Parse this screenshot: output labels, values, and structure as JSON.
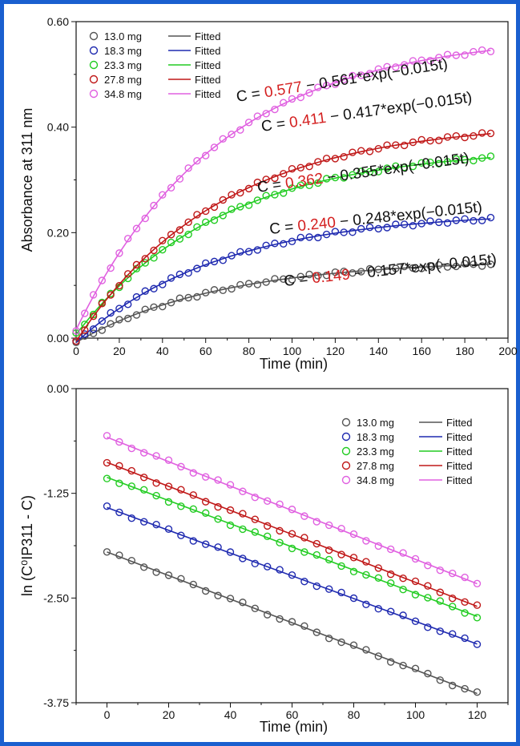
{
  "chart_data": [
    {
      "type": "scatter",
      "xlabel": "Time (min)",
      "ylabel": "Absorbance at 311 nm",
      "xlim": [
        0,
        200
      ],
      "ylim": [
        0,
        0.6
      ],
      "xticks": [
        "0",
        "20",
        "40",
        "60",
        "80",
        "100",
        "120",
        "140",
        "160",
        "180",
        "200"
      ],
      "yticks": [
        "0.00",
        "0.20",
        "0.40",
        "0.60"
      ],
      "legend_position": "top-left",
      "fit_label": "Fitted",
      "series": [
        {
          "name": "13.0 mg",
          "color": "#555555",
          "equation": {
            "prefix": "C = ",
            "a": "0.149",
            "suffix": " − 0.157*exp(−0.015t)"
          },
          "A": 0.149,
          "B": 0.157,
          "k": 0.015
        },
        {
          "name": "18.3 mg",
          "color": "#1f2ab0",
          "equation": {
            "prefix": "C = ",
            "a": "0.240",
            "suffix": " − 0.248*exp(−0.015t)"
          },
          "A": 0.24,
          "B": 0.248,
          "k": 0.015
        },
        {
          "name": "23.3 mg",
          "color": "#22cc22",
          "equation": {
            "prefix": "C = ",
            "a": "0.362",
            "suffix": " − 0.355*exp(−0.015t)"
          },
          "A": 0.362,
          "B": 0.355,
          "k": 0.015
        },
        {
          "name": "27.8 mg",
          "color": "#c01818",
          "equation": {
            "prefix": "C = ",
            "a": "0.411",
            "suffix": " − 0.417*exp(−0.015t)"
          },
          "A": 0.411,
          "B": 0.417,
          "k": 0.015
        },
        {
          "name": "34.8 mg",
          "color": "#e060e0",
          "equation": {
            "prefix": "C = ",
            "a": "0.577",
            "suffix": " − 0.561*exp(−0.015t)"
          },
          "A": 0.577,
          "B": 0.561,
          "k": 0.015
        }
      ],
      "x_points": [
        0,
        4,
        8,
        12,
        16,
        20,
        24,
        28,
        32,
        36,
        40,
        44,
        48,
        52,
        56,
        60,
        64,
        68,
        72,
        76,
        80,
        84,
        88,
        92,
        96,
        100,
        104,
        108,
        112,
        116,
        120,
        124,
        128,
        132,
        136,
        140,
        144,
        148,
        152,
        156,
        160,
        164,
        168,
        172,
        176,
        180,
        184,
        188,
        192
      ]
    },
    {
      "type": "scatter",
      "xlabel": "Time (min)",
      "ylabel": "ln (C⁰IP311 - C)",
      "xlim": [
        -10,
        130
      ],
      "ylim": [
        -3.75,
        0
      ],
      "xticks": [
        "0",
        "20",
        "40",
        "60",
        "80",
        "100",
        "120"
      ],
      "yticks": [
        "0.00",
        "-1.25",
        "-2.50",
        "-3.75"
      ],
      "legend_position": "top-right",
      "fit_label": "Fitted",
      "series": [
        {
          "name": "13.0 mg",
          "color": "#555555",
          "intercept": -1.95,
          "slope": -0.01408
        },
        {
          "name": "18.3 mg",
          "color": "#1f2ab0",
          "intercept": -1.42,
          "slope": -0.01358
        },
        {
          "name": "23.3 mg",
          "color": "#22cc22",
          "intercept": -1.06,
          "slope": -0.01383
        },
        {
          "name": "27.8 mg",
          "color": "#c01818",
          "intercept": -0.88,
          "slope": -0.01433
        },
        {
          "name": "34.8 mg",
          "color": "#e060e0",
          "intercept": -0.58,
          "slope": -0.01458
        }
      ],
      "x_points": [
        0,
        4,
        8,
        12,
        16,
        20,
        24,
        28,
        32,
        36,
        40,
        44,
        48,
        52,
        56,
        60,
        64,
        68,
        72,
        76,
        80,
        84,
        88,
        92,
        96,
        100,
        104,
        108,
        112,
        116,
        120
      ]
    }
  ]
}
